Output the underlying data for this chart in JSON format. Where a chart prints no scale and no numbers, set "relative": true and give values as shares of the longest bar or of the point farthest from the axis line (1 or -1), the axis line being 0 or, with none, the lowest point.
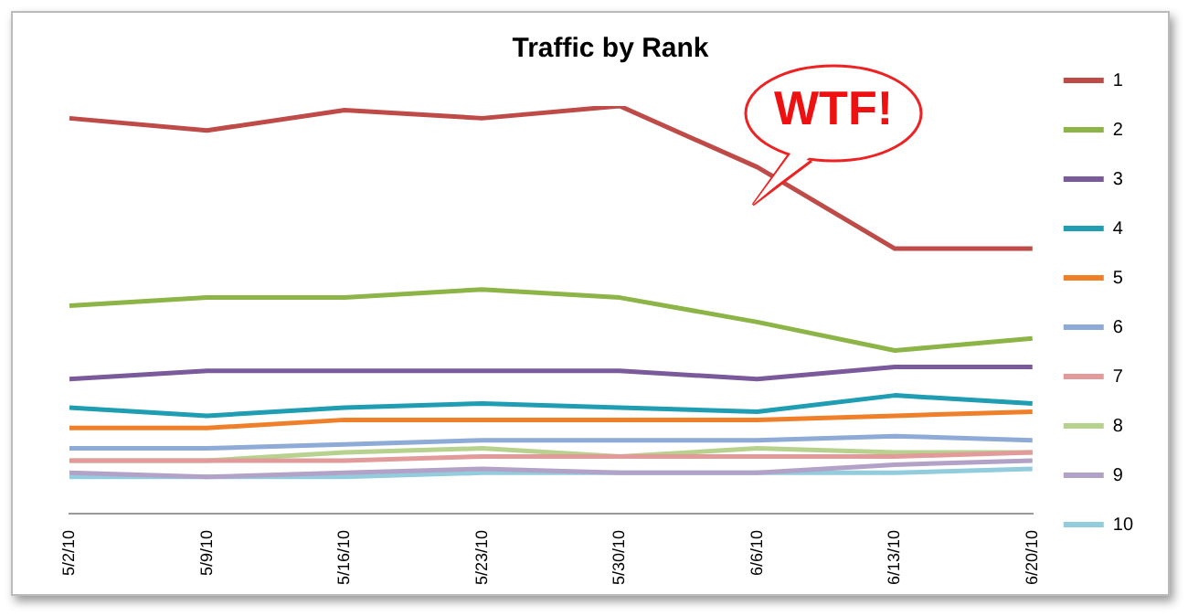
{
  "chart_data": {
    "type": "line",
    "title": "Traffic by Rank",
    "relative": true,
    "legend": "right",
    "marker": "none",
    "line_style": "solid",
    "grid": false,
    "tick_labels": "x",
    "categories": [
      "5/2/10",
      "5/9/10",
      "5/16/10",
      "5/23/10",
      "5/30/10",
      "6/6/10",
      "6/13/10",
      "6/20/10"
    ],
    "annotations": [
      "WTF!"
    ],
    "series": [
      {
        "name": "1",
        "color": "#be4b48",
        "values": [
          0.97,
          0.94,
          0.99,
          0.97,
          1,
          0.85,
          0.65,
          0.65
        ]
      },
      {
        "name": "2",
        "color": "#8cb447",
        "values": [
          0.51,
          0.53,
          0.53,
          0.55,
          0.53,
          0.47,
          0.4,
          0.43
        ]
      },
      {
        "name": "3",
        "color": "#7b5a9c",
        "values": [
          0.33,
          0.35,
          0.35,
          0.35,
          0.35,
          0.33,
          0.36,
          0.36
        ]
      },
      {
        "name": "4",
        "color": "#1f9db2",
        "values": [
          0.26,
          0.24,
          0.26,
          0.27,
          0.26,
          0.25,
          0.29,
          0.27
        ]
      },
      {
        "name": "5",
        "color": "#f07f2a",
        "values": [
          0.21,
          0.21,
          0.23,
          0.23,
          0.23,
          0.23,
          0.24,
          0.25
        ]
      },
      {
        "name": "6",
        "color": "#8eaad6",
        "values": [
          0.16,
          0.16,
          0.17,
          0.18,
          0.18,
          0.18,
          0.19,
          0.18
        ]
      },
      {
        "name": "7",
        "color": "#e39a9a",
        "values": [
          0.13,
          0.13,
          0.13,
          0.14,
          0.14,
          0.14,
          0.14,
          0.15
        ]
      },
      {
        "name": "8",
        "color": "#b6d28e",
        "values": [
          0.13,
          0.13,
          0.15,
          0.16,
          0.14,
          0.16,
          0.15,
          0.15
        ]
      },
      {
        "name": "9",
        "color": "#b3a2c7",
        "values": [
          0.1,
          0.09,
          0.1,
          0.11,
          0.1,
          0.1,
          0.12,
          0.13
        ]
      },
      {
        "name": "10",
        "color": "#93cddd",
        "values": [
          0.09,
          0.09,
          0.09,
          0.1,
          0.1,
          0.1,
          0.1,
          0.11
        ]
      }
    ]
  }
}
